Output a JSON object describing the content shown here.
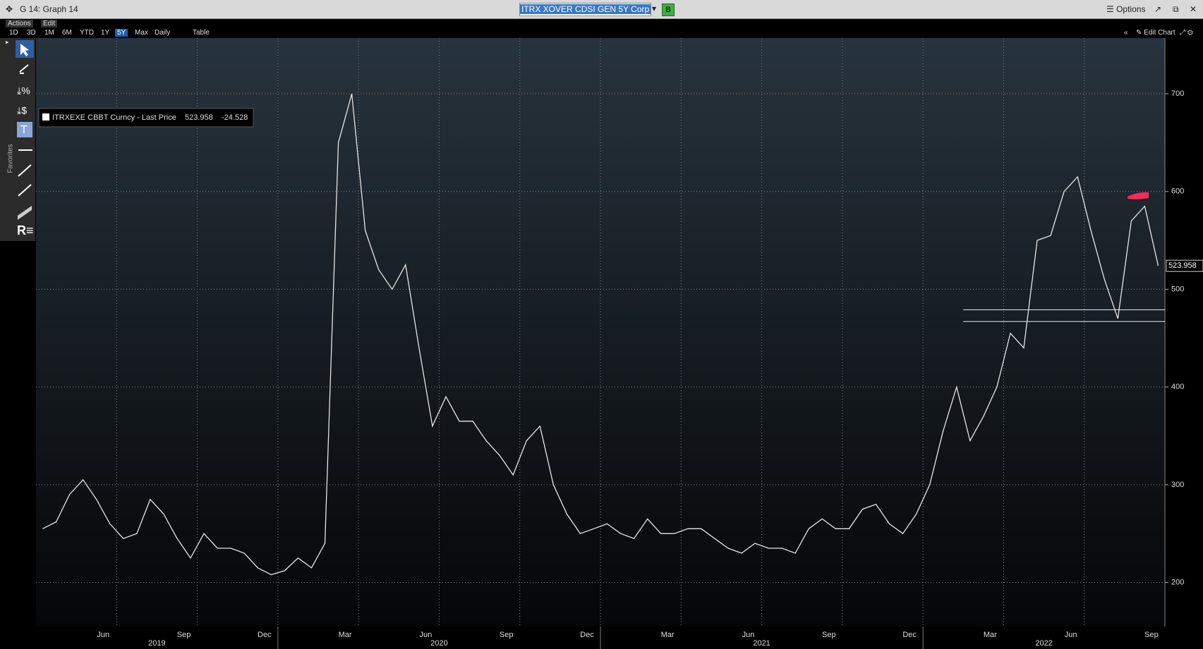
{
  "ui": {
    "window_title": "G 14: Graph 14",
    "ticker_input": "ITRX XOVER CDSI GEN 5Y Corp",
    "button_b": "B",
    "options": "Options",
    "actions": "Actions",
    "edit": "Edit",
    "ranges": [
      "1D",
      "3D",
      "1M",
      "6M",
      "YTD",
      "1Y",
      "5Y",
      "Max"
    ],
    "frequency": "Daily",
    "table": "Table",
    "edit_chart": "Edit Chart",
    "favorites": "Favorites"
  },
  "chart_data": {
    "type": "line",
    "x": [
      "2019-04",
      "2019-04",
      "2019-05",
      "2019-05",
      "2019-06",
      "2019-06",
      "2019-07",
      "2019-07",
      "2019-08",
      "2019-08",
      "2019-09",
      "2019-09",
      "2019-10",
      "2019-10",
      "2019-11",
      "2019-11",
      "2019-12",
      "2019-12",
      "2020-01",
      "2020-01",
      "2020-02",
      "2020-02",
      "2020-03",
      "2020-03",
      "2020-04",
      "2020-04",
      "2020-05",
      "2020-05",
      "2020-06",
      "2020-06",
      "2020-07",
      "2020-07",
      "2020-08",
      "2020-08",
      "2020-09",
      "2020-09",
      "2020-10",
      "2020-10",
      "2020-11",
      "2020-11",
      "2020-12",
      "2020-12",
      "2021-01",
      "2021-01",
      "2021-02",
      "2021-02",
      "2021-03",
      "2021-03",
      "2021-04",
      "2021-04",
      "2021-05",
      "2021-05",
      "2021-06",
      "2021-06",
      "2021-07",
      "2021-07",
      "2021-08",
      "2021-08",
      "2021-09",
      "2021-09",
      "2021-10",
      "2021-10",
      "2021-11",
      "2021-11",
      "2021-12",
      "2021-12",
      "2022-01",
      "2022-01",
      "2022-02",
      "2022-02",
      "2022-03",
      "2022-03",
      "2022-04",
      "2022-04",
      "2022-05",
      "2022-05",
      "2022-06",
      "2022-06",
      "2022-07",
      "2022-07",
      "2022-08",
      "2022-08",
      "2022-09",
      "2022-09"
    ],
    "series": [
      {
        "name": "ITRXEXE CBBT Curncy - Last Price",
        "color": "#e6e6e6",
        "values": [
          255,
          262,
          290,
          305,
          285,
          260,
          245,
          250,
          285,
          270,
          245,
          225,
          250,
          235,
          235,
          230,
          215,
          208,
          212,
          225,
          215,
          240,
          650,
          700,
          560,
          520,
          500,
          525,
          440,
          360,
          390,
          365,
          365,
          345,
          330,
          310,
          345,
          360,
          300,
          270,
          250,
          255,
          260,
          250,
          245,
          265,
          250,
          250,
          255,
          255,
          245,
          235,
          230,
          240,
          235,
          235,
          230,
          255,
          265,
          255,
          255,
          275,
          280,
          260,
          250,
          270,
          300,
          355,
          400,
          345,
          370,
          400,
          455,
          440,
          550,
          555,
          600,
          615,
          560,
          510,
          470,
          570,
          585,
          523.958
        ],
        "change": -24.528
      }
    ],
    "xlim": [
      "2019-04",
      "2022-09"
    ],
    "xticks": [
      {
        "value": "2019-06",
        "label": "Jun"
      },
      {
        "value": "2019-09",
        "label": "Sep"
      },
      {
        "value": "2019-12",
        "label": "Dec"
      },
      {
        "value": "2020-03",
        "label": "Mar"
      },
      {
        "value": "2020-06",
        "label": "Jun"
      },
      {
        "value": "2020-09",
        "label": "Sep"
      },
      {
        "value": "2020-12",
        "label": "Dec"
      },
      {
        "value": "2021-03",
        "label": "Mar"
      },
      {
        "value": "2021-06",
        "label": "Jun"
      },
      {
        "value": "2021-09",
        "label": "Sep"
      },
      {
        "value": "2021-12",
        "label": "Dec"
      },
      {
        "value": "2022-03",
        "label": "Mar"
      },
      {
        "value": "2022-06",
        "label": "Jun"
      },
      {
        "value": "2022-09",
        "label": "Sep"
      }
    ],
    "xyears": [
      "2019",
      "2020",
      "2021",
      "2022"
    ],
    "ylim": [
      155,
      757
    ],
    "yticks": [
      200,
      300,
      400,
      500,
      600,
      700
    ],
    "hlines": [
      479,
      467
    ],
    "hline_from": "2022-02",
    "grid": true
  }
}
